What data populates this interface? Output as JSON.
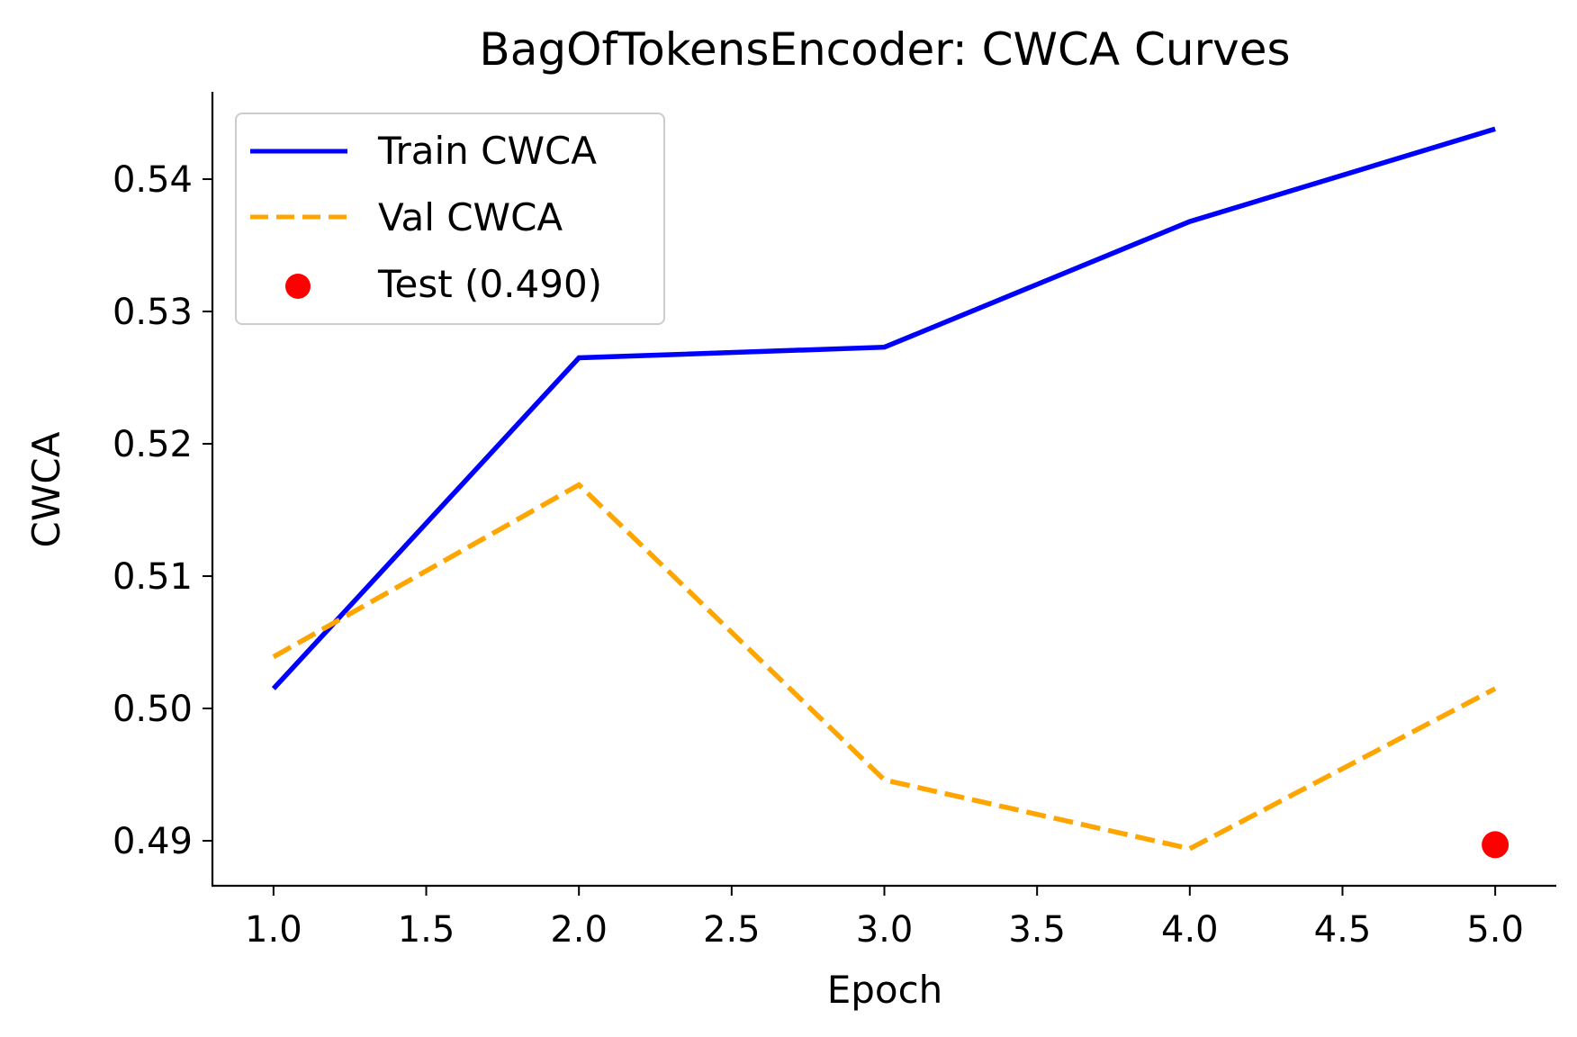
{
  "chart_data": {
    "type": "line",
    "title": "BagOfTokensEncoder: CWCA Curves",
    "xlabel": "Epoch",
    "ylabel": "CWCA",
    "xlim": [
      0.8,
      5.2
    ],
    "ylim": [
      0.4866,
      0.5466
    ],
    "xticks": [
      1.0,
      1.5,
      2.0,
      2.5,
      3.0,
      3.5,
      4.0,
      4.5,
      5.0
    ],
    "xtick_labels": [
      "1.0",
      "1.5",
      "2.0",
      "2.5",
      "3.0",
      "3.5",
      "4.0",
      "4.5",
      "5.0"
    ],
    "yticks": [
      0.49,
      0.5,
      0.51,
      0.52,
      0.53,
      0.54
    ],
    "ytick_labels": [
      "0.49",
      "0.50",
      "0.51",
      "0.52",
      "0.53",
      "0.54"
    ],
    "grid": false,
    "legend_position": "top-left",
    "series": [
      {
        "name": "Train CWCA",
        "style": "solid",
        "color": "#0000ff",
        "x": [
          1,
          2,
          3,
          4,
          5
        ],
        "y": [
          0.5015,
          0.5265,
          0.5273,
          0.5368,
          0.5438
        ]
      },
      {
        "name": "Val CWCA",
        "style": "dashed",
        "color": "#ffa500",
        "x": [
          1,
          2,
          3,
          4,
          5
        ],
        "y": [
          0.5039,
          0.5169,
          0.4946,
          0.4894,
          0.5015
        ]
      },
      {
        "name": "Test (0.490)",
        "style": "marker",
        "color": "#ff0000",
        "x": [
          5
        ],
        "y": [
          0.4897
        ]
      }
    ]
  }
}
